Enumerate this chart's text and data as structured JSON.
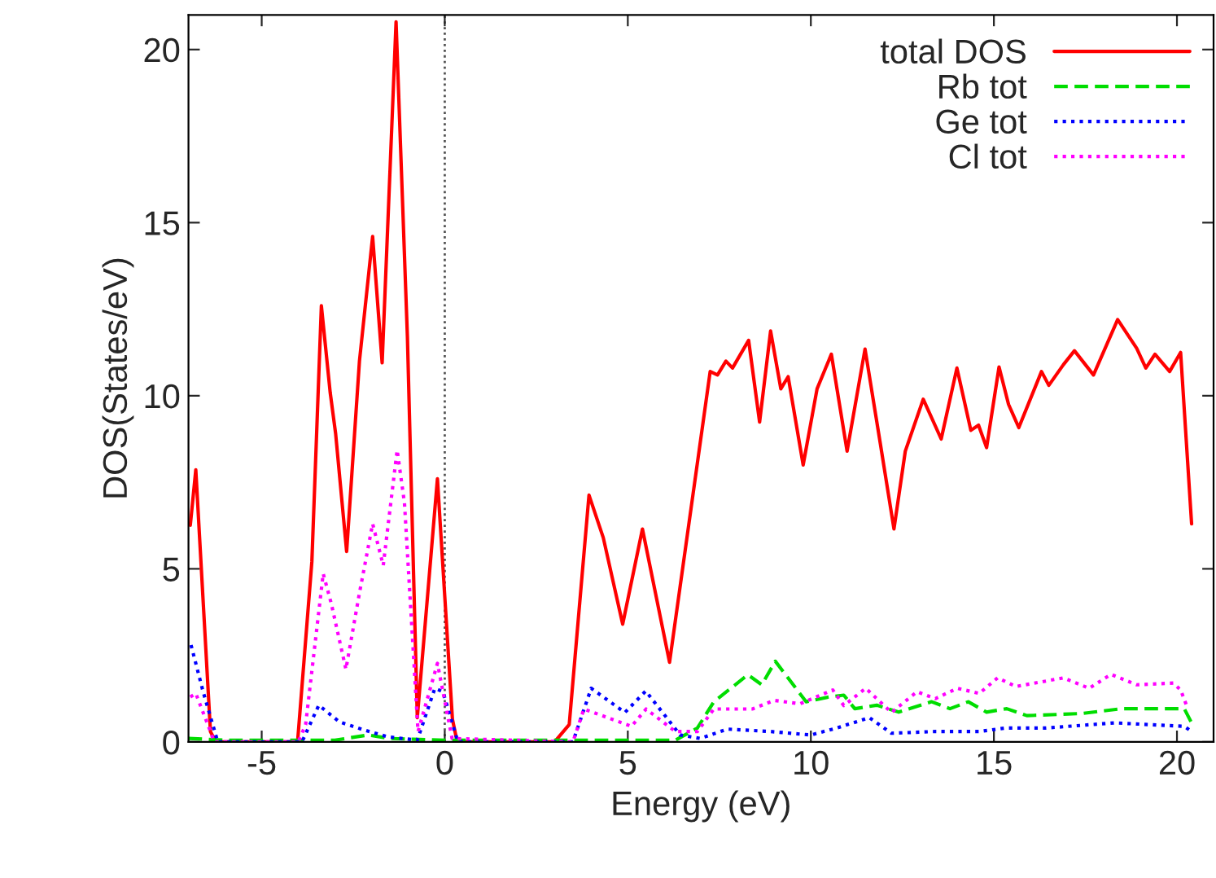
{
  "chart_data": {
    "type": "line",
    "xlabel": "Energy (eV)",
    "ylabel": "DOS(States/eV)",
    "xlim": [
      -7,
      21
    ],
    "ylim": [
      0,
      21
    ],
    "xticks": [
      -5,
      0,
      5,
      10,
      15,
      20
    ],
    "yticks": [
      0,
      5,
      10,
      15,
      20
    ],
    "grid": false,
    "legend": "top right",
    "marker": "none",
    "ref_lines": [
      {
        "axis": "x",
        "value": 0,
        "color": "#555555",
        "line_style": "dotted"
      }
    ],
    "series": [
      {
        "name": "total DOS",
        "color": "#ff0000",
        "line_style": "solid",
        "x": [
          -6.95,
          -6.8,
          -6.4,
          -6.25,
          -4.02,
          -3.63,
          -3.37,
          -3.13,
          -2.98,
          -2.68,
          -2.33,
          -1.97,
          -1.71,
          -1.33,
          -1.02,
          -0.75,
          -0.2,
          0.21,
          0.34,
          3.0,
          3.4,
          3.94,
          4.33,
          4.86,
          5.4,
          6.14,
          7.25,
          7.45,
          7.68,
          7.86,
          8.3,
          8.6,
          8.9,
          9.18,
          9.38,
          9.79,
          10.17,
          10.56,
          10.99,
          11.48,
          11.9,
          12.27,
          12.58,
          13.07,
          13.56,
          13.99,
          14.37,
          14.58,
          14.8,
          15.14,
          15.4,
          15.68,
          16.3,
          16.5,
          16.9,
          17.2,
          17.72,
          18.38,
          18.9,
          19.15,
          19.4,
          19.8,
          20.1,
          20.4
        ],
        "values": [
          6.26,
          7.86,
          0.3,
          0,
          0,
          5.2,
          12.6,
          10.1,
          8.9,
          5.5,
          11.0,
          14.6,
          10.95,
          20.8,
          11.7,
          0.7,
          7.6,
          0.65,
          0,
          0,
          0.5,
          7.13,
          5.9,
          3.4,
          6.15,
          2.3,
          10.7,
          10.6,
          11.0,
          10.8,
          11.6,
          9.24,
          11.87,
          10.2,
          10.55,
          8.0,
          10.2,
          11.2,
          8.4,
          11.35,
          8.6,
          6.15,
          8.4,
          9.9,
          8.75,
          10.8,
          9.0,
          9.15,
          8.5,
          10.83,
          9.75,
          9.08,
          10.7,
          10.3,
          10.9,
          11.3,
          10.6,
          12.2,
          11.37,
          10.8,
          11.2,
          10.7,
          11.25,
          6.3
        ]
      },
      {
        "name": "Rb tot",
        "color": "#00dd00",
        "line_style": "dashed",
        "x": [
          -7,
          -6,
          -3,
          -2.1,
          -1.5,
          0,
          6.3,
          6.9,
          7.35,
          8.28,
          8.66,
          9.03,
          9.87,
          10.5,
          10.9,
          11.2,
          11.8,
          12.4,
          13.3,
          13.8,
          14.3,
          14.8,
          15.35,
          15.9,
          17.4,
          18.5,
          19.6,
          20.2,
          20.4
        ],
        "values": [
          0.1,
          0.05,
          0.05,
          0.2,
          0.1,
          0.05,
          0.05,
          0.4,
          1.16,
          1.94,
          1.65,
          2.33,
          1.16,
          1.3,
          1.35,
          0.96,
          1.06,
          0.86,
          1.16,
          0.96,
          1.16,
          0.86,
          0.96,
          0.76,
          0.82,
          0.96,
          0.96,
          0.96,
          0.55
        ]
      },
      {
        "name": "Ge tot",
        "color": "#0000ff",
        "line_style": "dotted",
        "x": [
          -6.93,
          -6.6,
          -6.2,
          -3.9,
          -3.44,
          -2.88,
          -2.22,
          -1.57,
          -0.75,
          -0.27,
          -0.05,
          0.36,
          3.5,
          4.0,
          4.92,
          5.49,
          6.43,
          6.98,
          7.72,
          8.9,
          10.0,
          10.7,
          11.6,
          12.2,
          13.4,
          14.6,
          15.3,
          16.4,
          18.3,
          20.2,
          20.4
        ],
        "values": [
          2.8,
          1.45,
          0,
          0,
          1.06,
          0.58,
          0.35,
          0.15,
          0.05,
          1.55,
          1.45,
          0,
          0,
          1.55,
          0.85,
          1.47,
          0.2,
          0.1,
          0.37,
          0.3,
          0.2,
          0.4,
          0.7,
          0.25,
          0.3,
          0.3,
          0.4,
          0.4,
          0.55,
          0.45,
          0.3
        ]
      },
      {
        "name": "Cl tot",
        "color": "#ff00ff",
        "line_style": "dotted",
        "x": [
          -6.95,
          -6.8,
          -6.4,
          -6.3,
          -4.0,
          -3.8,
          -3.32,
          -3.1,
          -2.7,
          -2.33,
          -1.97,
          -1.68,
          -1.3,
          -1.1,
          -0.73,
          -0.2,
          0.2,
          3.5,
          3.8,
          5.1,
          5.5,
          6.3,
          6.9,
          7.35,
          8.4,
          9.0,
          9.7,
          10.6,
          10.9,
          11.5,
          12.2,
          12.9,
          13.4,
          14.0,
          14.6,
          15.1,
          15.6,
          16.9,
          17.6,
          18.2,
          18.9,
          19.9,
          20.1,
          20.3
        ],
        "values": [
          1.3,
          1.4,
          0.3,
          0,
          0,
          0.5,
          4.86,
          4.0,
          2.1,
          4.3,
          6.3,
          5.1,
          8.43,
          6.9,
          0.3,
          2.27,
          0.1,
          0,
          0.95,
          0.45,
          0.95,
          0.3,
          0.3,
          0.95,
          0.95,
          1.2,
          1.1,
          1.5,
          1.05,
          1.55,
          0.85,
          1.45,
          1.25,
          1.55,
          1.4,
          1.85,
          1.6,
          1.85,
          1.55,
          1.95,
          1.65,
          1.7,
          1.5,
          0.95
        ]
      }
    ]
  }
}
